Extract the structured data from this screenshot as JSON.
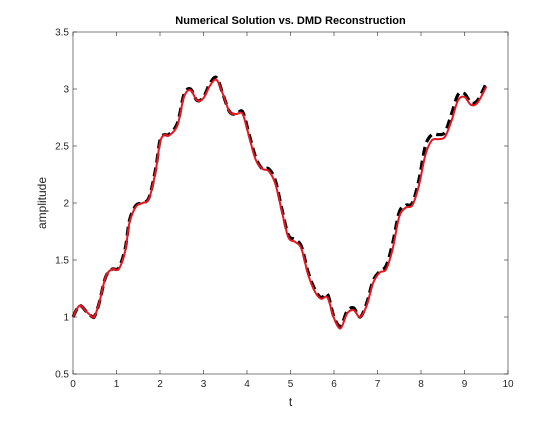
{
  "chart_data": {
    "type": "line",
    "title": "Numerical Solution vs. DMD Reconstruction",
    "xlabel": "t",
    "ylabel": "amplitude",
    "xlim": [
      0,
      10
    ],
    "ylim": [
      0.5,
      3.5
    ],
    "xticks": [
      0,
      1,
      2,
      3,
      4,
      5,
      6,
      7,
      8,
      9,
      10
    ],
    "yticks": [
      0.5,
      1,
      1.5,
      2,
      2.5,
      3,
      3.5
    ],
    "xtick_labels": [
      "0",
      "1",
      "2",
      "3",
      "4",
      "5",
      "6",
      "7",
      "8",
      "9",
      "10"
    ],
    "ytick_labels": [
      "0.5",
      "1",
      "1.5",
      "2",
      "2.5",
      "3",
      "3.5"
    ],
    "grid": false,
    "legend": "none",
    "series": [
      {
        "style": "dashed",
        "color": "#000000",
        "x": [
          0,
          0.15,
          0.3,
          0.45,
          0.5,
          0.6,
          0.75,
          0.9,
          1.05,
          1.2,
          1.3,
          1.45,
          1.6,
          1.75,
          1.9,
          2.0,
          2.1,
          2.2,
          2.4,
          2.55,
          2.7,
          2.85,
          3.0,
          3.15,
          3.3,
          3.45,
          3.6,
          3.75,
          3.9,
          4.05,
          4.2,
          4.35,
          4.5,
          4.65,
          4.8,
          4.95,
          5.1,
          5.25,
          5.4,
          5.55,
          5.7,
          5.85,
          6.0,
          6.15,
          6.3,
          6.45,
          6.6,
          6.75,
          6.9,
          7.05,
          7.2,
          7.35,
          7.5,
          7.65,
          7.8,
          7.95,
          8.1,
          8.25,
          8.4,
          8.55,
          8.7,
          8.85,
          9.0,
          9.15,
          9.3,
          9.5
        ],
        "y": [
          1.0,
          1.1,
          1.05,
          1.0,
          1.01,
          1.12,
          1.35,
          1.42,
          1.43,
          1.6,
          1.85,
          1.98,
          2.0,
          2.05,
          2.3,
          2.55,
          2.6,
          2.6,
          2.7,
          2.95,
          3.0,
          2.9,
          2.93,
          3.05,
          3.1,
          2.95,
          2.8,
          2.78,
          2.8,
          2.6,
          2.4,
          2.3,
          2.3,
          2.2,
          1.95,
          1.72,
          1.68,
          1.62,
          1.4,
          1.25,
          1.17,
          1.2,
          1.0,
          0.92,
          1.05,
          1.08,
          1.0,
          1.12,
          1.32,
          1.4,
          1.45,
          1.65,
          1.92,
          1.98,
          2.0,
          2.2,
          2.5,
          2.6,
          2.6,
          2.62,
          2.78,
          2.95,
          2.96,
          2.88,
          2.9,
          3.05
        ]
      },
      {
        "style": "solid",
        "color": "#e8161e",
        "x": [
          0,
          0.15,
          0.3,
          0.45,
          0.5,
          0.6,
          0.75,
          0.9,
          1.05,
          1.2,
          1.3,
          1.45,
          1.6,
          1.75,
          1.9,
          2.0,
          2.1,
          2.2,
          2.4,
          2.55,
          2.7,
          2.85,
          3.0,
          3.15,
          3.3,
          3.45,
          3.6,
          3.75,
          3.9,
          4.05,
          4.2,
          4.35,
          4.5,
          4.65,
          4.8,
          4.95,
          5.1,
          5.25,
          5.4,
          5.55,
          5.7,
          5.85,
          6.0,
          6.15,
          6.3,
          6.45,
          6.6,
          6.75,
          6.9,
          7.05,
          7.2,
          7.35,
          7.5,
          7.65,
          7.8,
          7.95,
          8.1,
          8.25,
          8.4,
          8.55,
          8.7,
          8.85,
          9.0,
          9.15,
          9.3,
          9.5
        ],
        "y": [
          1.0,
          1.1,
          1.05,
          1.0,
          1.01,
          1.12,
          1.35,
          1.42,
          1.42,
          1.58,
          1.83,
          1.97,
          2.0,
          2.04,
          2.28,
          2.53,
          2.6,
          2.59,
          2.68,
          2.93,
          2.99,
          2.9,
          2.92,
          3.03,
          3.08,
          2.95,
          2.8,
          2.78,
          2.78,
          2.58,
          2.38,
          2.3,
          2.28,
          2.17,
          1.93,
          1.7,
          1.66,
          1.6,
          1.38,
          1.23,
          1.16,
          1.17,
          0.99,
          0.9,
          1.03,
          1.06,
          1.0,
          1.1,
          1.3,
          1.39,
          1.42,
          1.6,
          1.88,
          1.96,
          1.98,
          2.15,
          2.42,
          2.55,
          2.56,
          2.58,
          2.72,
          2.9,
          2.93,
          2.86,
          2.88,
          3.02
        ]
      }
    ]
  }
}
